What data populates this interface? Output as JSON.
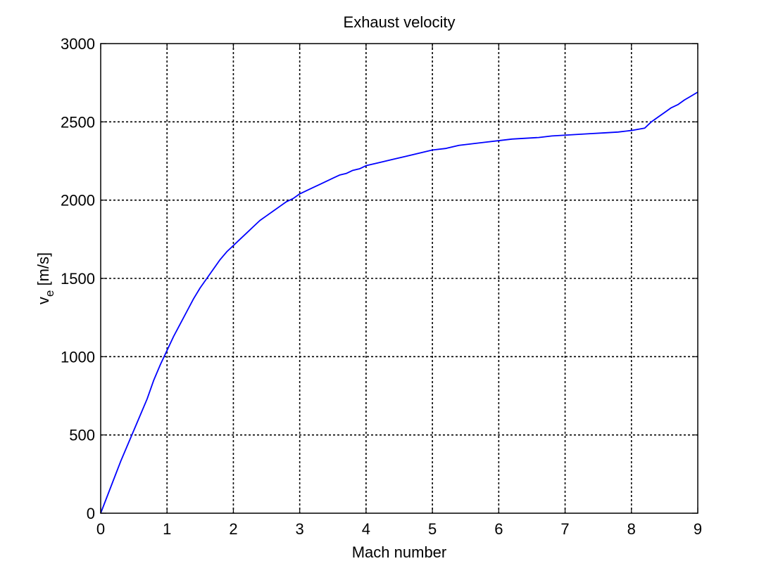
{
  "chart_data": {
    "type": "line",
    "title": "Exhaust velocity",
    "xlabel": "Mach number",
    "ylabel_main": "v",
    "ylabel_sub": "e",
    "ylabel_unit": " [m/s]",
    "xlim": [
      0,
      9
    ],
    "ylim": [
      0,
      3000
    ],
    "xticks": [
      0,
      1,
      2,
      3,
      4,
      5,
      6,
      7,
      8,
      9
    ],
    "yticks": [
      0,
      500,
      1000,
      1500,
      2000,
      2500,
      3000
    ],
    "grid": true,
    "series": [
      {
        "color": "#0000ff",
        "x": [
          0,
          0.1,
          0.2,
          0.3,
          0.4,
          0.5,
          0.6,
          0.7,
          0.8,
          0.9,
          1.0,
          1.1,
          1.2,
          1.3,
          1.4,
          1.5,
          1.6,
          1.7,
          1.8,
          1.9,
          2.0,
          2.1,
          2.2,
          2.3,
          2.4,
          2.5,
          2.6,
          2.7,
          2.8,
          2.9,
          3.0,
          3.1,
          3.2,
          3.3,
          3.4,
          3.5,
          3.6,
          3.7,
          3.8,
          3.9,
          4.0,
          4.2,
          4.4,
          4.6,
          4.8,
          5.0,
          5.2,
          5.4,
          5.6,
          5.8,
          6.0,
          6.2,
          6.4,
          6.6,
          6.8,
          7.0,
          7.2,
          7.4,
          7.6,
          7.8,
          8.0,
          8.2,
          8.3,
          8.4,
          8.5,
          8.6,
          8.7,
          8.8,
          8.9,
          9.0
        ],
        "y": [
          0,
          110,
          220,
          330,
          430,
          530,
          630,
          730,
          850,
          950,
          1040,
          1130,
          1210,
          1290,
          1370,
          1440,
          1500,
          1560,
          1620,
          1670,
          1710,
          1750,
          1790,
          1830,
          1870,
          1900,
          1930,
          1960,
          1990,
          2010,
          2040,
          2060,
          2080,
          2100,
          2120,
          2140,
          2160,
          2170,
          2190,
          2200,
          2220,
          2240,
          2260,
          2280,
          2300,
          2320,
          2330,
          2350,
          2360,
          2370,
          2380,
          2390,
          2395,
          2400,
          2410,
          2415,
          2420,
          2425,
          2430,
          2435,
          2445,
          2460,
          2500,
          2530,
          2560,
          2590,
          2610,
          2640,
          2665,
          2690
        ]
      }
    ]
  }
}
